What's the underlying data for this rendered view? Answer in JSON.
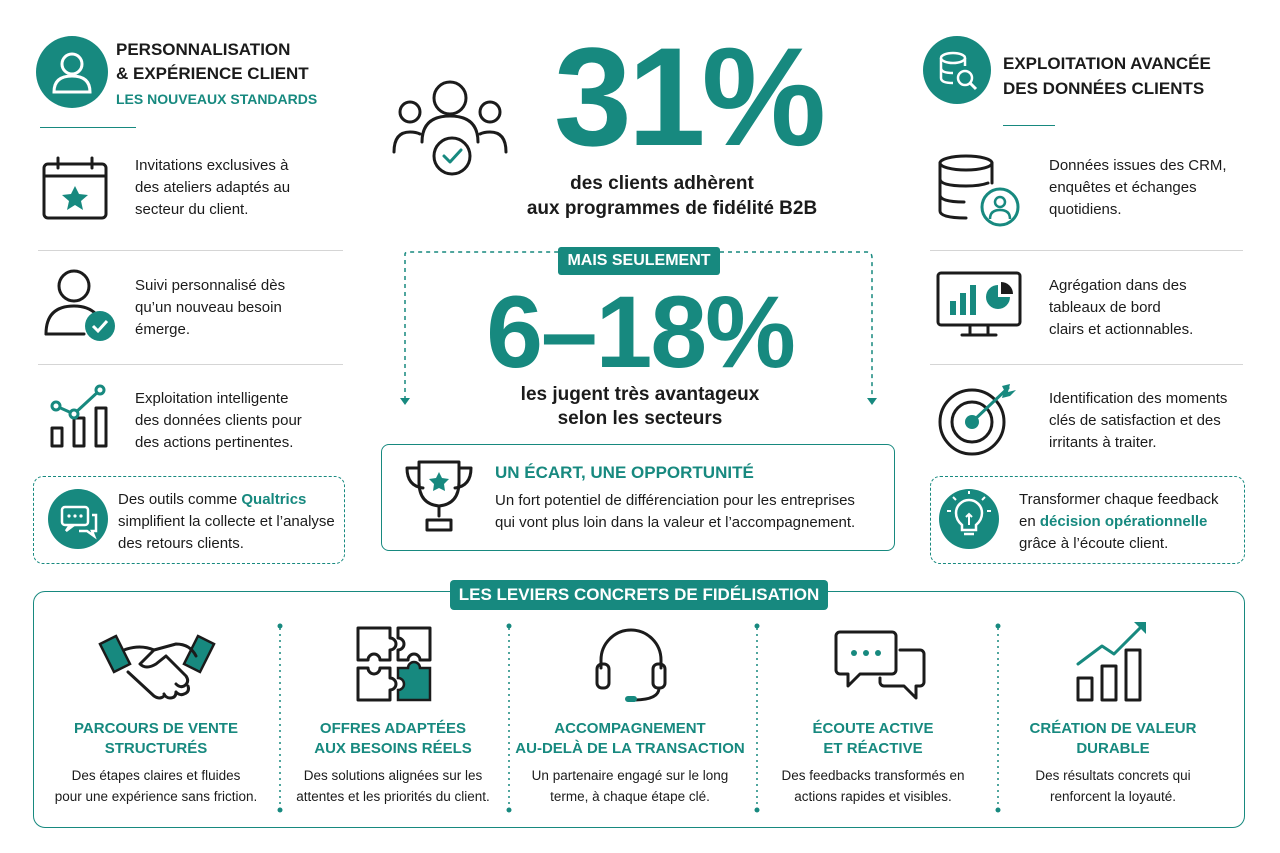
{
  "left": {
    "title": [
      "PERSONNALISATION",
      "& EXPÉRIENCE CLIENT"
    ],
    "subtitle": "LES NOUVEAUX STANDARDS",
    "items": [
      [
        "Invitations exclusives à",
        "des ateliers adaptés au",
        "secteur du client."
      ],
      [
        "Suivi personnalisé dès",
        "qu’un nouveau besoin",
        "émerge."
      ],
      [
        "Exploitation intelligente",
        "des données clients pour",
        "des actions pertinentes."
      ]
    ],
    "note": [
      "Des outils comme ",
      "Qualtrics",
      "simplifient la collecte et l’analyse",
      "des retours clients."
    ]
  },
  "center": {
    "stat1": "31%",
    "caption1": [
      "des clients adhèrent",
      "aux programmes de fidélité B2B"
    ],
    "badge": "MAIS SEULEMENT",
    "stat2": "6–18%",
    "caption2": [
      "les jugent très avantageux",
      "selon les secteurs"
    ],
    "opportunity": {
      "title": "UN ÉCART, UNE OPPORTUNITÉ",
      "text": [
        "Un fort potentiel de différenciation pour les entreprises",
        "qui vont plus loin dans la valeur et l’accompagnement."
      ]
    }
  },
  "right": {
    "title": [
      "EXPLOITATION AVANCÉE",
      "DES DONNÉES CLIENTS"
    ],
    "items": [
      [
        "Données issues des CRM,",
        "enquêtes et échanges",
        "quotidiens."
      ],
      [
        "Agrégation dans des",
        "tableaux de bord",
        "clairs et actionnables."
      ],
      [
        "Identification des moments",
        "clés de satisfaction et des",
        "irritants à traiter."
      ]
    ],
    "note": [
      "Transformer chaque feedback",
      "en ",
      "décision opérationnelle",
      "grâce à l’écoute client."
    ]
  },
  "levers": {
    "title": "LES LEVIERS CONCRETS DE FIDÉLISATION",
    "items": [
      {
        "title": [
          "PARCOURS DE VENTE",
          "STRUCTURÉS"
        ],
        "text": [
          "Des étapes claires et fluides",
          "pour une expérience sans friction."
        ]
      },
      {
        "title": [
          "OFFRES ADAPTÉES",
          "AUX BESOINS RÉELS"
        ],
        "text": [
          "Des solutions alignées sur les",
          "attentes et les priorités du client."
        ]
      },
      {
        "title": [
          "ACCOMPAGNEMENT",
          "AU-DELÀ DE LA TRANSACTION"
        ],
        "text": [
          "Un partenaire engagé sur le long",
          "terme, à chaque étape clé."
        ]
      },
      {
        "title": [
          "ÉCOUTE ACTIVE",
          "ET RÉACTIVE"
        ],
        "text": [
          "Des feedbacks transformés en",
          "actions rapides et visibles."
        ]
      },
      {
        "title": [
          "CRÉATION DE VALEUR",
          "DURABLE"
        ],
        "text": [
          "Des résultats concrets qui",
          "renforcent la loyauté."
        ]
      }
    ]
  }
}
